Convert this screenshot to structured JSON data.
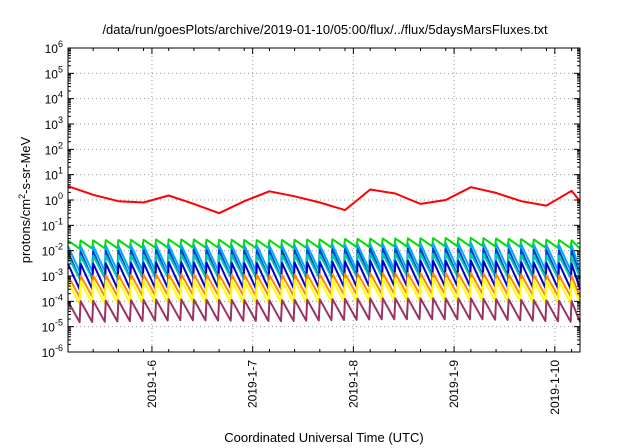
{
  "chart_data": {
    "type": "line",
    "title": "/data/run/goesPlots/archive/2019-01-10/05:00/flux/../flux/5daysMarsFluxes.txt",
    "xlabel": "Coordinated Universal Time (UTC)",
    "ylabel": {
      "prefix": "protons/cm",
      "sup": "2",
      "suffix": "-s-sr-MeV"
    },
    "y_scale": "log",
    "ylim_exp": [
      -6,
      6
    ],
    "y_ticks": [
      {
        "base": "10",
        "exp": "-6"
      },
      {
        "base": "10",
        "exp": "-5"
      },
      {
        "base": "10",
        "exp": "-4"
      },
      {
        "base": "10",
        "exp": "-3"
      },
      {
        "base": "10",
        "exp": "-2"
      },
      {
        "base": "10",
        "exp": "-1"
      },
      {
        "base": "10",
        "exp": "0"
      },
      {
        "base": "10",
        "exp": "1"
      },
      {
        "base": "10",
        "exp": "2"
      },
      {
        "base": "10",
        "exp": "3"
      },
      {
        "base": "10",
        "exp": "4"
      },
      {
        "base": "10",
        "exp": "5"
      },
      {
        "base": "10",
        "exp": "6"
      }
    ],
    "x_range": [
      "2019-01-05 04:00",
      "2019-01-10 06:00"
    ],
    "x_ticks": [
      "2019-1-6",
      "2019-1-7",
      "2019-1-8",
      "2019-1-9",
      "2019-1-10"
    ],
    "grid": true,
    "series": [
      {
        "color": "#ff0000",
        "x": [
          "2019-01-05 04:00",
          "2019-01-05 10:00",
          "2019-01-05 16:00",
          "2019-01-05 22:00",
          "2019-01-06 04:00",
          "2019-01-06 10:00",
          "2019-01-06 16:00",
          "2019-01-06 22:00",
          "2019-01-07 04:00",
          "2019-01-07 10:00",
          "2019-01-07 16:00",
          "2019-01-07 22:00",
          "2019-01-08 04:00",
          "2019-01-08 10:00",
          "2019-01-08 16:00",
          "2019-01-08 22:00",
          "2019-01-09 04:00",
          "2019-01-09 10:00",
          "2019-01-09 16:00",
          "2019-01-09 22:00",
          "2019-01-10 04:00",
          "2019-01-10 06:00"
        ],
        "y": [
          3.5,
          1.6,
          0.9,
          0.8,
          1.5,
          0.7,
          0.3,
          0.9,
          2.2,
          1.4,
          0.8,
          0.4,
          2.6,
          1.8,
          0.7,
          1.0,
          3.2,
          1.9,
          0.9,
          0.6,
          2.3,
          0.9
        ]
      },
      {
        "color": "#00dd00",
        "x": [
          "2019-01-05 04:00",
          "2019-01-06 04:00",
          "2019-01-07 04:00",
          "2019-01-08 04:00",
          "2019-01-09 04:00",
          "2019-01-10 06:00"
        ],
        "y": [
          0.025,
          0.028,
          0.026,
          0.03,
          0.032,
          0.025
        ],
        "dip": 0.012
      },
      {
        "color": "#00aaff",
        "x": [
          "2019-01-05 04:00",
          "2019-01-06 04:00",
          "2019-01-07 04:00",
          "2019-01-08 04:00",
          "2019-01-09 04:00",
          "2019-01-10 06:00"
        ],
        "y": [
          0.015,
          0.017,
          0.016,
          0.018,
          0.02,
          0.016
        ],
        "dip": 0.0015
      },
      {
        "color": "#0044cc",
        "x": [
          "2019-01-05 04:00",
          "2019-01-06 04:00",
          "2019-01-07 04:00",
          "2019-01-08 04:00",
          "2019-01-09 04:00",
          "2019-01-10 06:00"
        ],
        "y": [
          0.009,
          0.011,
          0.01,
          0.012,
          0.012,
          0.01
        ],
        "dip": 0.0008
      },
      {
        "color": "#00c8b4",
        "x": [
          "2019-01-05 04:00",
          "2019-01-06 04:00",
          "2019-01-07 04:00",
          "2019-01-08 04:00",
          "2019-01-09 04:00",
          "2019-01-10 06:00"
        ],
        "y": [
          0.006,
          0.007,
          0.0065,
          0.0075,
          0.0075,
          0.006
        ],
        "dip": 0.0008
      },
      {
        "color": "#0000cc",
        "x": [
          "2019-01-05 04:00",
          "2019-01-06 04:00",
          "2019-01-07 04:00",
          "2019-01-08 04:00",
          "2019-01-09 04:00",
          "2019-01-10 06:00"
        ],
        "y": [
          0.003,
          0.0035,
          0.0032,
          0.004,
          0.004,
          0.003
        ],
        "dip": 0.0003
      },
      {
        "color": "#ff8800",
        "x": [
          "2019-01-05 04:00",
          "2019-01-06 04:00",
          "2019-01-07 04:00",
          "2019-01-08 04:00",
          "2019-01-09 04:00",
          "2019-01-10 06:00"
        ],
        "y": [
          0.001,
          0.0012,
          0.0011,
          0.0013,
          0.0013,
          0.001
        ],
        "dip": 0.00015
      },
      {
        "color": "#ffff00",
        "x": [
          "2019-01-05 04:00",
          "2019-01-06 04:00",
          "2019-01-07 04:00",
          "2019-01-08 04:00",
          "2019-01-09 04:00",
          "2019-01-10 06:00"
        ],
        "y": [
          0.0006,
          0.0007,
          0.00065,
          0.0008,
          0.0008,
          0.0006
        ],
        "dip": 8e-05
      },
      {
        "color": "#993366",
        "x": [
          "2019-01-05 04:00",
          "2019-01-06 04:00",
          "2019-01-07 04:00",
          "2019-01-08 04:00",
          "2019-01-09 04:00",
          "2019-01-10 06:00"
        ],
        "y": [
          0.0001,
          0.00012,
          0.00011,
          0.00013,
          0.00013,
          0.0001
        ],
        "dip": 1.5e-05
      }
    ]
  }
}
